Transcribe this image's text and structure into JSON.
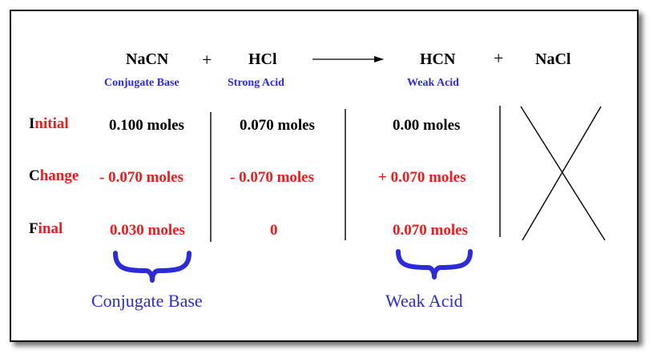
{
  "equation": {
    "reactant1": "NaCN",
    "plus1": "+",
    "reactant2": "HCl",
    "product1": "HCN",
    "plus2": "+",
    "product2": "NaCl"
  },
  "labels": {
    "reactant1": "Conjugate Base",
    "reactant2": "Strong Acid",
    "product1": "Weak Acid"
  },
  "rows": [
    {
      "initial_letter": "I",
      "rest": "nitial"
    },
    {
      "initial_letter": "C",
      "rest": "hange"
    },
    {
      "initial_letter": "F",
      "rest": "inal"
    }
  ],
  "table": {
    "nacn": [
      "0.100 moles",
      "- 0.070 moles",
      "0.030 moles"
    ],
    "hcl": [
      "0.070 moles",
      "- 0.070 moles",
      "0"
    ],
    "hcn": [
      "0.00 moles",
      "+ 0.070 moles",
      "0.070 moles"
    ]
  },
  "braces": {
    "left": "Conjugate Base",
    "right": "Weak Acid"
  },
  "colors": {
    "red": "#f01c1c",
    "blue": "#2b2bd9",
    "black": "#000000"
  }
}
